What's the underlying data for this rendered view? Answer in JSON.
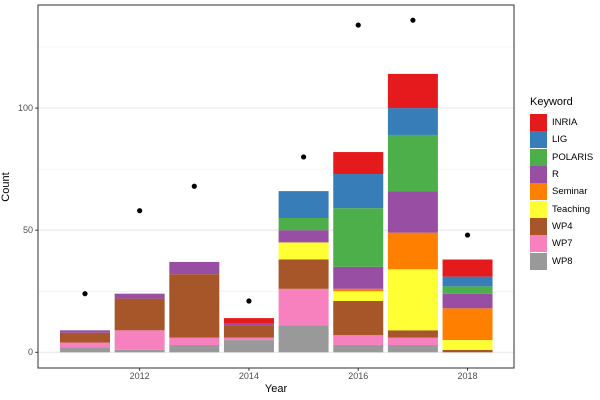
{
  "chart_data": {
    "type": "bar",
    "stacked": true,
    "title": "",
    "xlabel": "Year",
    "ylabel": "Count",
    "categories": [
      2011,
      2012,
      2013,
      2014,
      2015,
      2016,
      2017,
      2018
    ],
    "x_tick_labels": [
      "2012",
      "2014",
      "2016",
      "2018"
    ],
    "x_tick_values": [
      2012,
      2014,
      2016,
      2018
    ],
    "y_tick_labels": [
      "0",
      "50",
      "100"
    ],
    "y_tick_values": [
      0,
      50,
      100
    ],
    "y_minor_gridlines": [
      25,
      75,
      125
    ],
    "ylim": [
      -6,
      142
    ],
    "grid": "on",
    "legend_position": "right",
    "legend_title": "Keyword",
    "stack_order_bottom_to_top": [
      "WP8",
      "WP7",
      "WP4",
      "Teaching",
      "Seminar",
      "R",
      "POLARIS",
      "LIG",
      "INRIA"
    ],
    "series": [
      {
        "name": "INRIA",
        "color": "#E41A1C",
        "values": [
          0,
          0,
          0,
          2,
          0,
          9,
          14,
          7
        ]
      },
      {
        "name": "LIG",
        "color": "#377EB8",
        "values": [
          0,
          0,
          0,
          0,
          11,
          14,
          11,
          4
        ]
      },
      {
        "name": "POLARIS",
        "color": "#4DAF4A",
        "values": [
          0,
          0,
          0,
          0,
          5,
          24,
          23,
          3
        ]
      },
      {
        "name": "R",
        "color": "#984EA3",
        "values": [
          1,
          2,
          5,
          1,
          5,
          9,
          17,
          6
        ]
      },
      {
        "name": "Seminar",
        "color": "#FF7F00",
        "values": [
          0,
          0,
          0,
          0,
          0,
          1,
          15,
          13
        ]
      },
      {
        "name": "Teaching",
        "color": "#FFFF33",
        "values": [
          0,
          0,
          0,
          0,
          7,
          4,
          25,
          4
        ]
      },
      {
        "name": "WP4",
        "color": "#A65628",
        "values": [
          4,
          13,
          26,
          5,
          12,
          14,
          3,
          1
        ]
      },
      {
        "name": "WP7",
        "color": "#F781BF",
        "values": [
          2,
          8,
          3,
          1,
          15,
          4,
          3,
          0
        ]
      },
      {
        "name": "WP8",
        "color": "#999999",
        "values": [
          2,
          1,
          3,
          5,
          11,
          3,
          3,
          0
        ]
      }
    ],
    "bar_totals": [
      9,
      24,
      37,
      14,
      66,
      82,
      114,
      38
    ],
    "points": {
      "name": "yearly-total-dot",
      "color": "#000000",
      "values": [
        24,
        58,
        68,
        21,
        80,
        134,
        136,
        48
      ]
    },
    "colors": {
      "panel_border": "#2f2f2f",
      "major_gridline": "#e9e9e9",
      "minor_gridline": "#f4f4f4",
      "tick_mark": "#333333",
      "tick_text": "#4d4d4d"
    }
  }
}
